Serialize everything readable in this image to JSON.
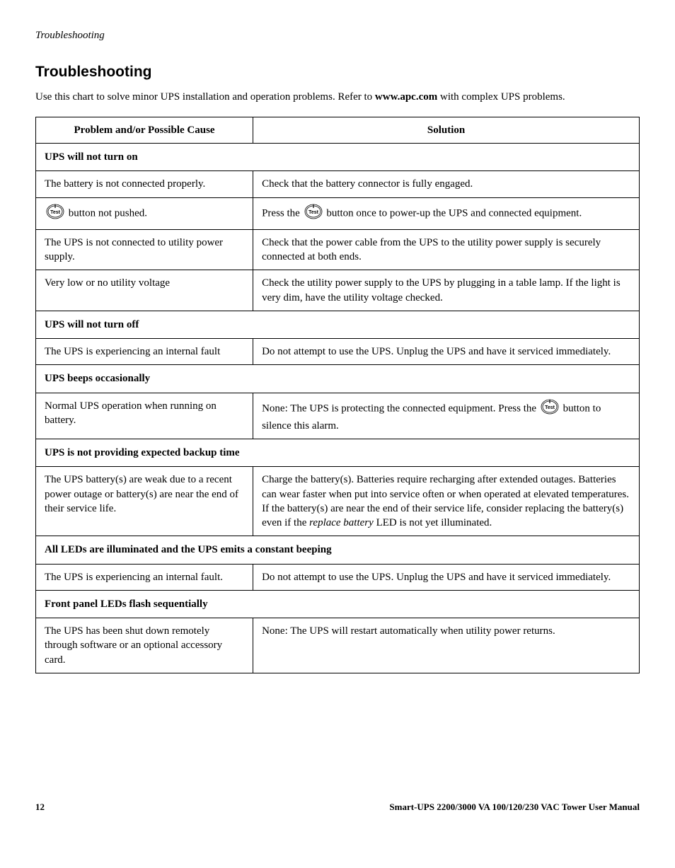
{
  "running_head": "Troubleshooting",
  "heading": "Troubleshooting",
  "intro_pre": "Use this chart to solve minor UPS installation and operation problems. Refer to ",
  "intro_bold": "www.apc.com",
  "intro_post": " with complex UPS problems.",
  "icon": {
    "label": "Test",
    "stroke": "#000000",
    "fill": "#ffffff",
    "text_fill": "#000000"
  },
  "table": {
    "header_cause": "Problem and/or Possible Cause",
    "header_solution": "Solution",
    "sections": [
      {
        "title": "UPS will not turn on",
        "rows": [
          {
            "cause_type": "text",
            "cause": "The battery is not connected properly.",
            "solution_type": "text",
            "solution": "Check that the battery connector is fully engaged."
          },
          {
            "cause_type": "icon_then_text",
            "cause_after_icon": " button not pushed.",
            "solution_type": "text_icon_text",
            "solution_before_icon": "Press the ",
            "solution_after_icon": " button once to power-up the UPS and connected equipment."
          },
          {
            "cause_type": "text",
            "cause": "The UPS is not connected to utility power supply.",
            "solution_type": "text",
            "solution": "Check that the power cable from the UPS to the utility power supply is securely connected at both ends."
          },
          {
            "cause_type": "text",
            "cause": "Very low or no utility voltage",
            "solution_type": "text",
            "solution": "Check the utility power supply to the UPS by plugging in a table lamp. If the light is very dim, have the utility voltage checked."
          }
        ]
      },
      {
        "title": "UPS will not turn off",
        "rows": [
          {
            "cause_type": "text",
            "cause": "The UPS is experiencing an internal fault",
            "solution_type": "text",
            "solution": "Do not attempt to use the UPS. Unplug the UPS and have it serviced immediately."
          }
        ]
      },
      {
        "title": "UPS beeps occasionally",
        "rows": [
          {
            "cause_type": "text",
            "cause": "Normal UPS operation when running on battery.",
            "solution_type": "text_icon_text",
            "solution_before_icon": "None: The UPS is protecting the connected equipment. Press the ",
            "solution_after_icon": " button to silence this alarm."
          }
        ]
      },
      {
        "title": "UPS is not providing expected backup time",
        "rows": [
          {
            "cause_type": "text",
            "cause": "The UPS battery(s) are weak due to a recent power outage or battery(s) are near the end of their service life.",
            "solution_type": "rich",
            "solution_pre": "Charge the battery(s). Batteries require recharging after extended outages. Batteries can wear faster when put into service often or when operated at elevated temperatures. If the battery(s) are near the end of their service life, consider replacing the battery(s) even if the ",
            "solution_italic": "replace battery",
            "solution_post": " LED is not yet illuminated."
          }
        ]
      },
      {
        "title": "All LEDs are illuminated and the UPS emits a constant beeping",
        "rows": [
          {
            "cause_type": "text",
            "cause": "The UPS is experiencing an internal fault.",
            "solution_type": "text",
            "solution": "Do not attempt to use the UPS. Unplug the UPS and have it serviced immediately."
          }
        ]
      },
      {
        "title": "Front panel LEDs flash sequentially",
        "rows": [
          {
            "cause_type": "text",
            "cause": "The UPS has been shut down remotely through software or an optional accessory card.",
            "solution_type": "text",
            "solution": "None: The UPS will restart automatically when utility power returns."
          }
        ]
      }
    ]
  },
  "footer": {
    "page": "12",
    "title": "Smart-UPS  2200/3000 VA  100/120/230 VAC   Tower   User Manual"
  }
}
